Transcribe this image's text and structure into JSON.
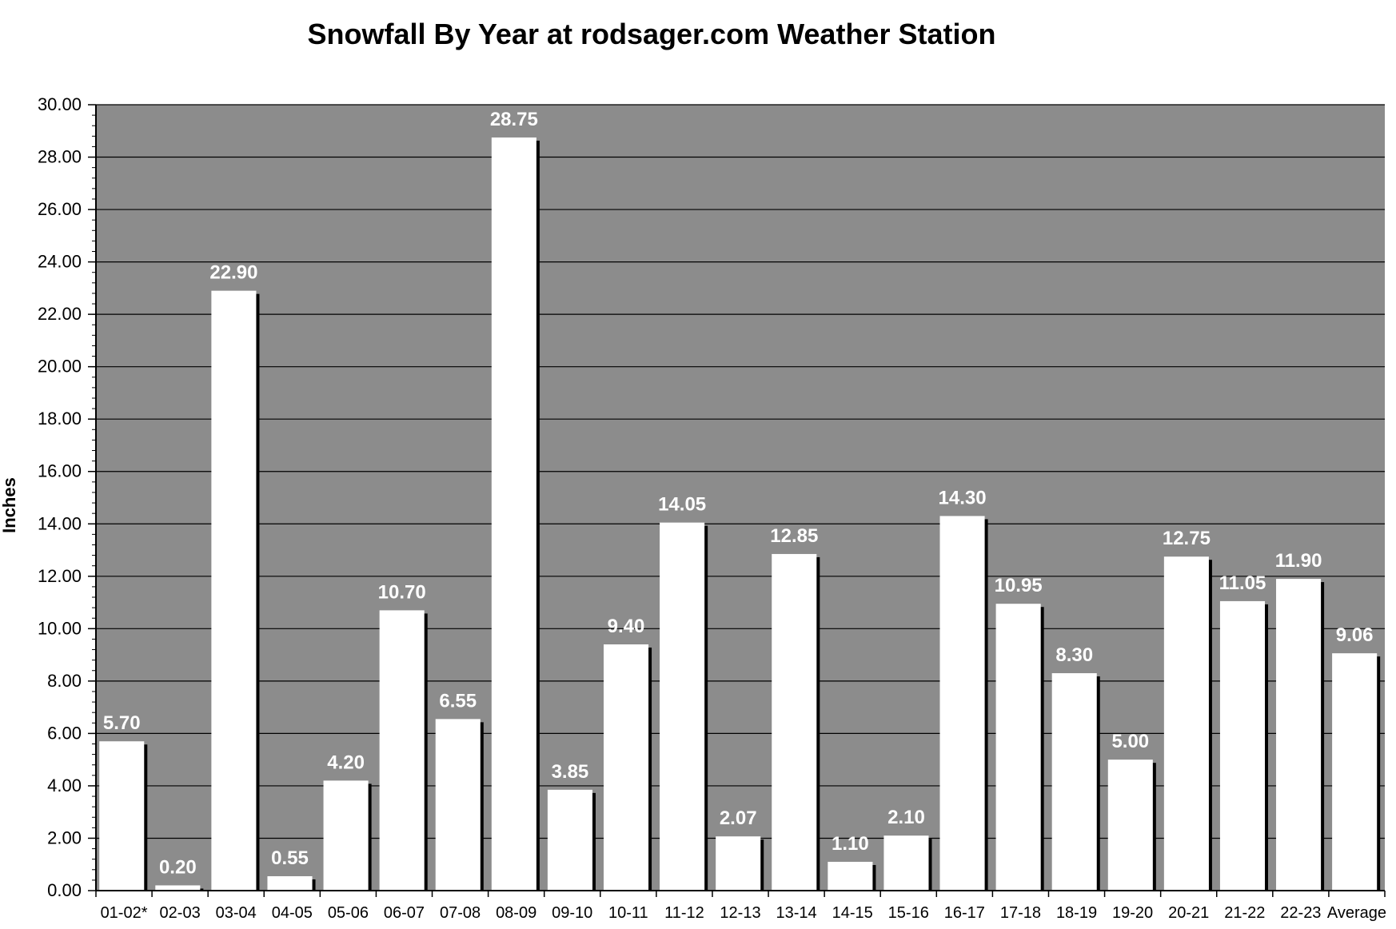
{
  "chart_data": {
    "type": "bar",
    "title": "Snowfall By Year at rodsager.com Weather Station",
    "ylabel": "Inches",
    "xlabel": "",
    "ylim": [
      0,
      30
    ],
    "yticks": [
      "0.00",
      "2.00",
      "4.00",
      "6.00",
      "8.00",
      "10.00",
      "12.00",
      "14.00",
      "16.00",
      "18.00",
      "20.00",
      "22.00",
      "24.00",
      "26.00",
      "28.00",
      "30.00"
    ],
    "categories": [
      "01-02*",
      "02-03",
      "03-04",
      "04-05",
      "05-06",
      "06-07",
      "07-08",
      "08-09",
      "09-10",
      "10-11",
      "11-12",
      "12-13",
      "13-14",
      "14-15",
      "15-16",
      "16-17",
      "17-18",
      "18-19",
      "19-20",
      "20-21",
      "21-22",
      "22-23",
      "Average"
    ],
    "values": [
      5.7,
      0.2,
      22.9,
      0.55,
      4.2,
      10.7,
      6.55,
      28.75,
      3.85,
      9.4,
      14.05,
      2.07,
      12.85,
      1.1,
      2.1,
      14.3,
      10.95,
      8.3,
      5.0,
      12.75,
      11.05,
      11.9,
      9.06
    ],
    "data_labels": [
      "5.70",
      "0.20",
      "22.90",
      "0.55",
      "4.20",
      "10.70",
      "6.55",
      "28.75",
      "3.85",
      "9.40",
      "14.05",
      "2.07",
      "12.85",
      "1.10",
      "2.10",
      "14.30",
      "10.95",
      "8.30",
      "5.00",
      "12.75",
      "11.05",
      "11.90",
      "9.06"
    ],
    "grid": true,
    "colors": {
      "plot_background": "#8c8c8c",
      "bar": "#ffffff",
      "bar_shadow": "#000000",
      "gridline": "#000000",
      "data_label": "#ffffff"
    }
  }
}
